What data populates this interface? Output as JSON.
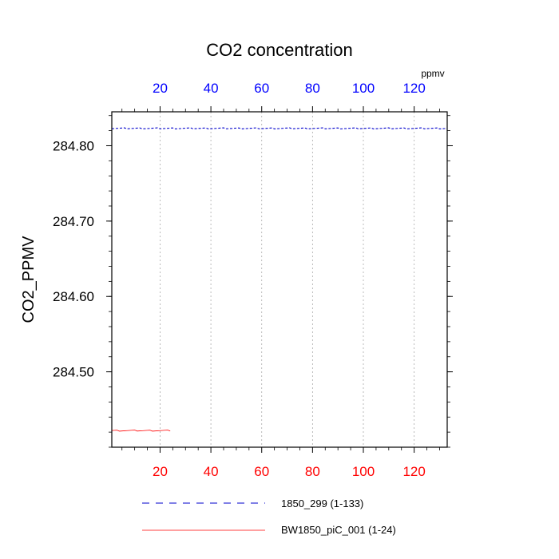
{
  "chart_data": {
    "type": "line",
    "title": "CO2 concentration",
    "ylabel": "CO2_PPMV",
    "top_axis_unit": "ppmv",
    "xlim": [
      1,
      133
    ],
    "ylim": [
      284.4,
      284.845
    ],
    "x_ticks": [
      20,
      40,
      60,
      80,
      100,
      120
    ],
    "x_tick_labels": [
      "20",
      "40",
      "60",
      "80",
      "100",
      "120"
    ],
    "y_ticks": [
      284.5,
      284.6,
      284.7,
      284.8
    ],
    "y_tick_labels": [
      "284.50",
      "284.60",
      "284.70",
      "284.80"
    ],
    "grid": "vertical",
    "colors": {
      "top_axis": "#0000ff",
      "bottom_axis": "#ff0000",
      "series_1": "#0000cc",
      "series_2": "#ff0000",
      "grid": "#aaaaaa"
    },
    "series": [
      {
        "name": "1850_299 (1-133)",
        "x_start": 1,
        "x_end": 133,
        "value": 284.823,
        "style": "dashed",
        "color": "#0000cc"
      },
      {
        "name": "BW1850_piC_001 (1-24)",
        "x_start": 1,
        "x_end": 24,
        "value": 284.422,
        "style": "solid",
        "color": "#ff0000"
      }
    ]
  }
}
